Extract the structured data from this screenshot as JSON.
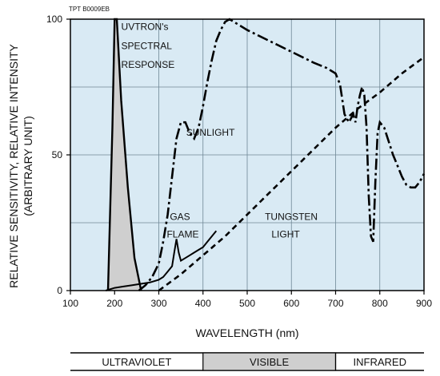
{
  "figure_code": "TPT B0009EB",
  "colors": {
    "plot_background": "#d9eaf4",
    "grid": "#6f8796",
    "curve": "#000000",
    "uvtron_fill": "#cfcfcf",
    "visible_band": "#cfcfcf"
  },
  "chart_data": {
    "type": "line",
    "title": "",
    "xlabel": "WAVELENGTH (nm)",
    "ylabel": "RELATIVE SENSITIVITY, RELATIVE INTENSITY",
    "ylabel_unit": "(ARBITRARY UNIT)",
    "xlim": [
      100,
      900
    ],
    "ylim": [
      0,
      100
    ],
    "xticks": [
      100,
      200,
      300,
      400,
      500,
      600,
      700,
      800,
      900
    ],
    "yticks": [
      0,
      50,
      100
    ],
    "grid": true,
    "legend": "none",
    "series": [
      {
        "name": "UVTRON's SPECTRAL RESPONSE",
        "style": "solid-filled",
        "x": [
          185,
          195,
          200,
          205,
          215,
          230,
          245,
          260
        ],
        "y": [
          0,
          60,
          100,
          100,
          70,
          38,
          12,
          0
        ]
      },
      {
        "name": "SUNLIGHT",
        "style": "dash-dot",
        "x": [
          255,
          270,
          285,
          300,
          310,
          320,
          330,
          340,
          350,
          360,
          370,
          380,
          390,
          400,
          410,
          420,
          430,
          440,
          450,
          460,
          470,
          480,
          500,
          550,
          600,
          650,
          680,
          700,
          710,
          720,
          730,
          740,
          745,
          750,
          755,
          760,
          765,
          770,
          775,
          780,
          785,
          790,
          795,
          800,
          810,
          820,
          830,
          840,
          850,
          860,
          870,
          880,
          890,
          900
        ],
        "y": [
          0,
          2,
          5,
          10,
          18,
          28,
          42,
          56,
          62,
          62,
          58,
          56,
          60,
          68,
          77,
          85,
          92,
          96,
          99,
          100,
          99,
          98,
          96,
          92,
          88,
          84,
          82,
          80,
          76,
          65,
          62,
          65,
          62,
          68,
          72,
          75,
          72,
          60,
          35,
          20,
          18,
          40,
          58,
          62,
          60,
          55,
          50,
          46,
          42,
          39,
          38,
          38,
          40,
          43
        ]
      },
      {
        "name": "GAS FLAME",
        "style": "solid",
        "x": [
          180,
          200,
          220,
          240,
          260,
          280,
          300,
          310,
          320,
          330,
          335,
          340,
          345,
          350,
          360,
          370,
          380,
          390,
          400,
          410,
          420,
          430
        ],
        "y": [
          0,
          1,
          1.5,
          2,
          2.5,
          3,
          4,
          5,
          7,
          9,
          14,
          19,
          14,
          11,
          12,
          13,
          14,
          15,
          16,
          18,
          20,
          22
        ]
      },
      {
        "name": "TUNGSTEN LIGHT",
        "style": "dashed",
        "x": [
          300,
          350,
          400,
          450,
          500,
          550,
          600,
          650,
          700,
          750,
          800,
          850,
          900
        ],
        "y": [
          0,
          6,
          13,
          20,
          28,
          36,
          44,
          52,
          60,
          67,
          73,
          80,
          86
        ]
      }
    ],
    "annotations": [
      {
        "text": "UVTRON's",
        "x": 215,
        "y": 96
      },
      {
        "text": "SPECTRAL",
        "x": 215,
        "y": 89
      },
      {
        "text": "RESPONSE",
        "x": 215,
        "y": 82
      },
      {
        "text": "SUNLIGHT",
        "x": 362,
        "y": 57
      },
      {
        "text": "GAS",
        "x": 325,
        "y": 26
      },
      {
        "text": "FLAME",
        "x": 318,
        "y": 19.5
      },
      {
        "text": "TUNGSTEN",
        "x": 540,
        "y": 26
      },
      {
        "text": "LIGHT",
        "x": 555,
        "y": 19.5
      }
    ],
    "spectrum_bands": [
      {
        "label": "ULTRAVIOLET",
        "from": 100,
        "to": 400
      },
      {
        "label": "VISIBLE",
        "from": 400,
        "to": 700
      },
      {
        "label": "INFRARED",
        "from": 700,
        "to": 900
      }
    ]
  }
}
